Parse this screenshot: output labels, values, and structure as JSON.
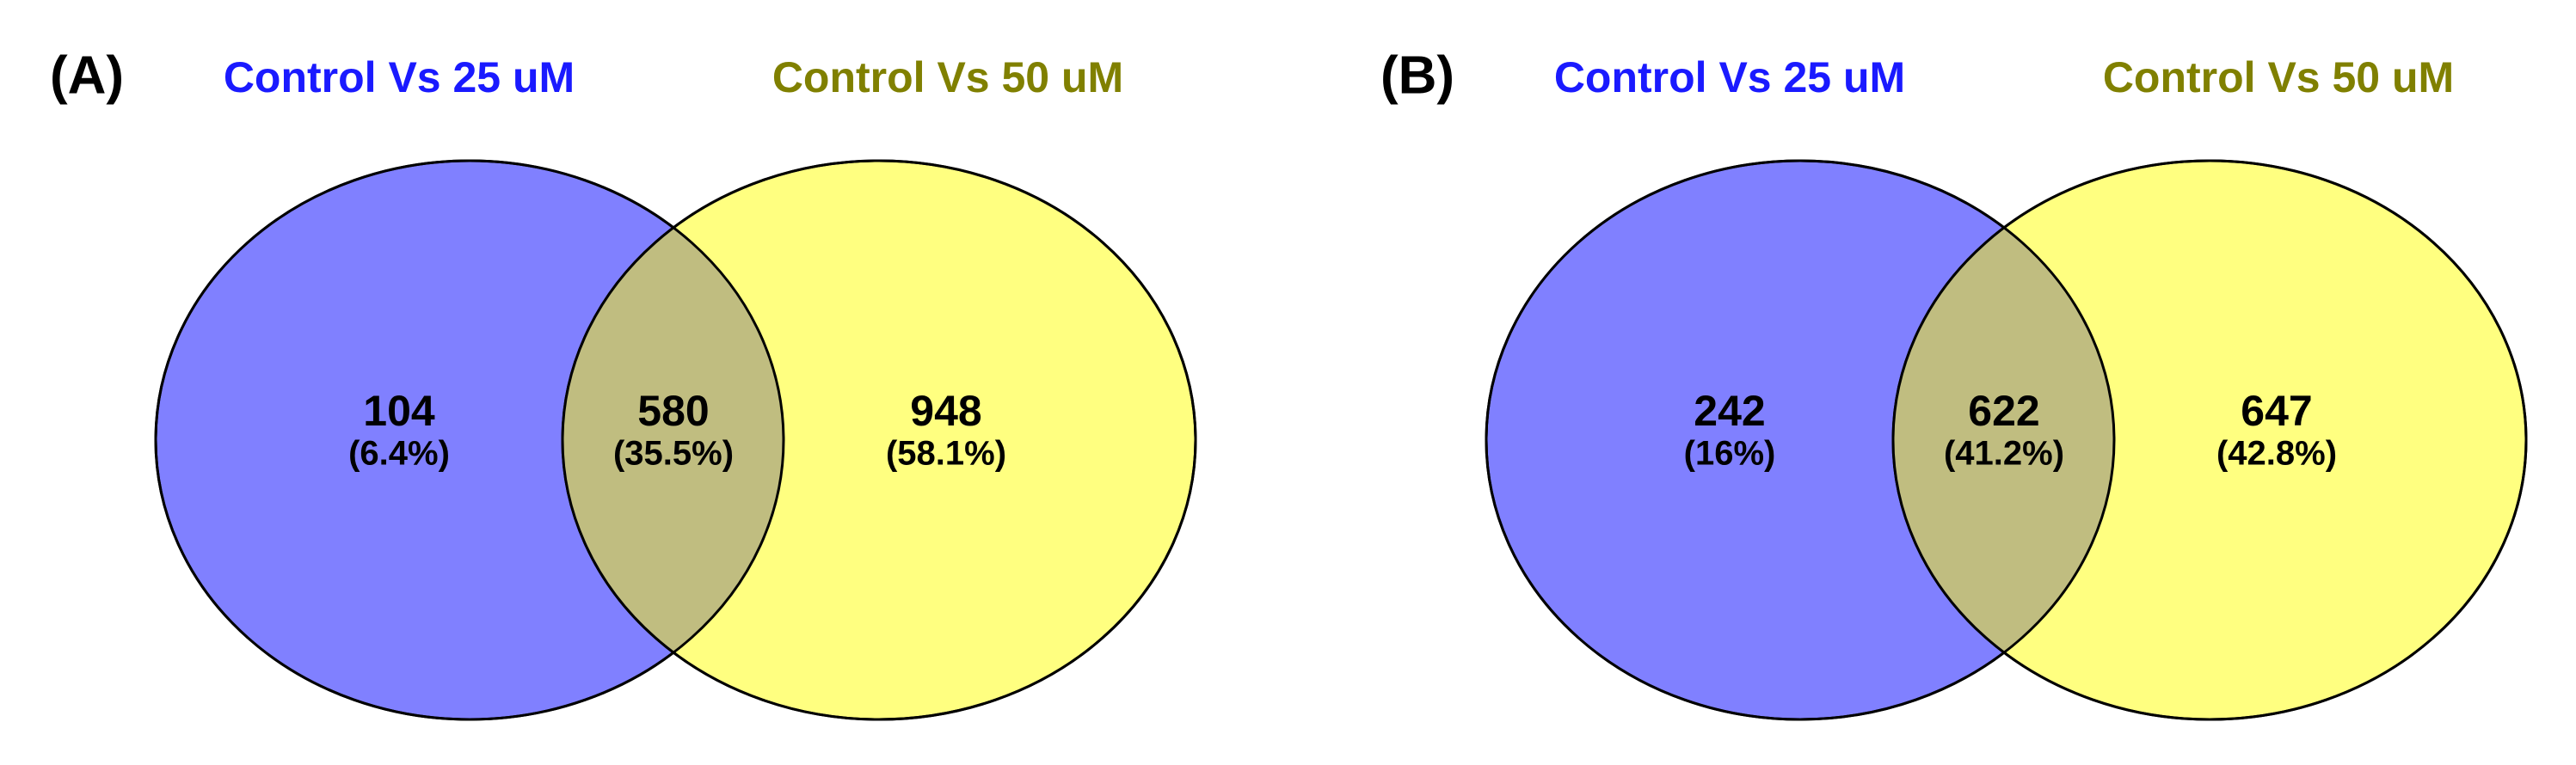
{
  "chart_data": [
    {
      "type": "venn",
      "panel_label": "(A)",
      "sets": [
        {
          "name": "Control Vs 25 uM",
          "color": "#8080ff",
          "label_color": "#1a1aff"
        },
        {
          "name": "Control Vs 50 uM",
          "color": "#ffff80",
          "label_color": "#808000"
        }
      ],
      "overlap_color": "#c0bd80",
      "values": [
        104,
        580,
        948
      ],
      "percentages": [
        6.4,
        35.5,
        58.1
      ],
      "percentage_labels": [
        "(6.4%)",
        "(35.5%)",
        "(58.1%)"
      ]
    },
    {
      "type": "venn",
      "panel_label": "(B)",
      "sets": [
        {
          "name": "Control Vs 25 uM",
          "color": "#8080ff",
          "label_color": "#1a1aff"
        },
        {
          "name": "Control Vs 50 uM",
          "color": "#ffff80",
          "label_color": "#808000"
        }
      ],
      "overlap_color": "#c0bd80",
      "values": [
        242,
        622,
        647
      ],
      "percentages": [
        16,
        41.2,
        42.8
      ],
      "percentage_labels": [
        "(16%)",
        "(41.2%)",
        "(42.8%)"
      ]
    }
  ]
}
